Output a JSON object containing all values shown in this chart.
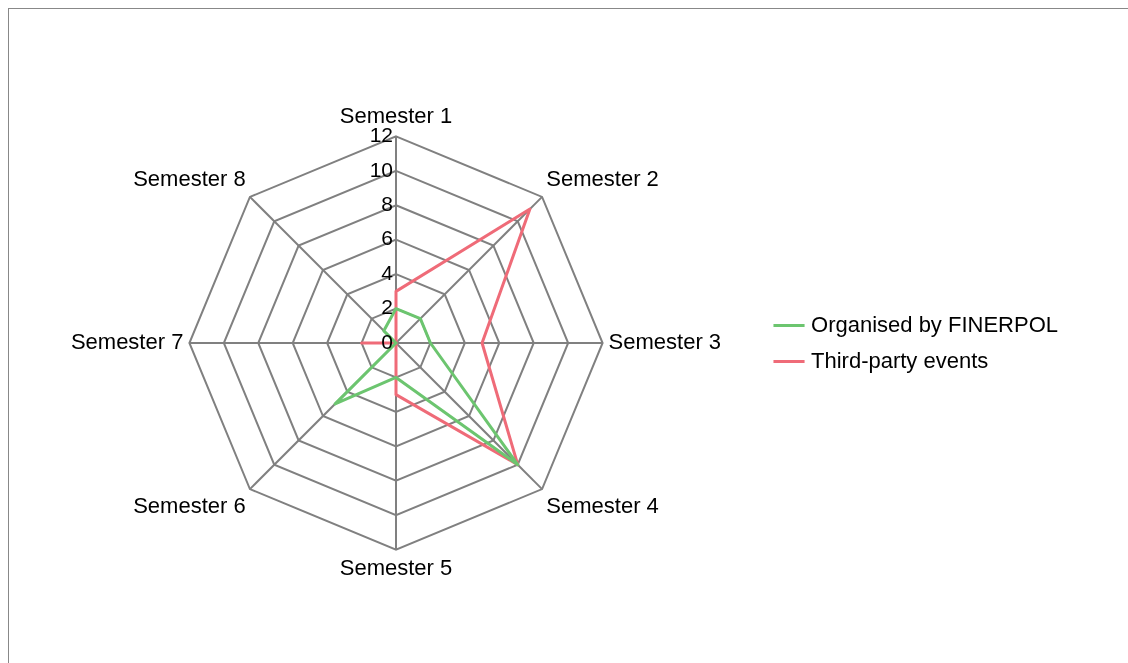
{
  "chart_data": {
    "type": "radar",
    "categories": [
      "Semester 1",
      "Semester 2",
      "Semester 3",
      "Semester 4",
      "Semester 5",
      "Semester 6",
      "Semester 7",
      "Semester 8"
    ],
    "series": [
      {
        "name": "Organised by FINERPOL",
        "color": "#6cc56f",
        "values": [
          2,
          2,
          2,
          10,
          2,
          5,
          0,
          1
        ]
      },
      {
        "name": "Third-party events",
        "color": "#ef6b78",
        "values": [
          3,
          11,
          5,
          10,
          3,
          0,
          2,
          0
        ]
      }
    ],
    "ylim": [
      0,
      12
    ],
    "yticks": [
      0,
      2,
      4,
      6,
      8,
      10,
      12
    ],
    "grid": true,
    "legend": "right",
    "marker": "none"
  }
}
